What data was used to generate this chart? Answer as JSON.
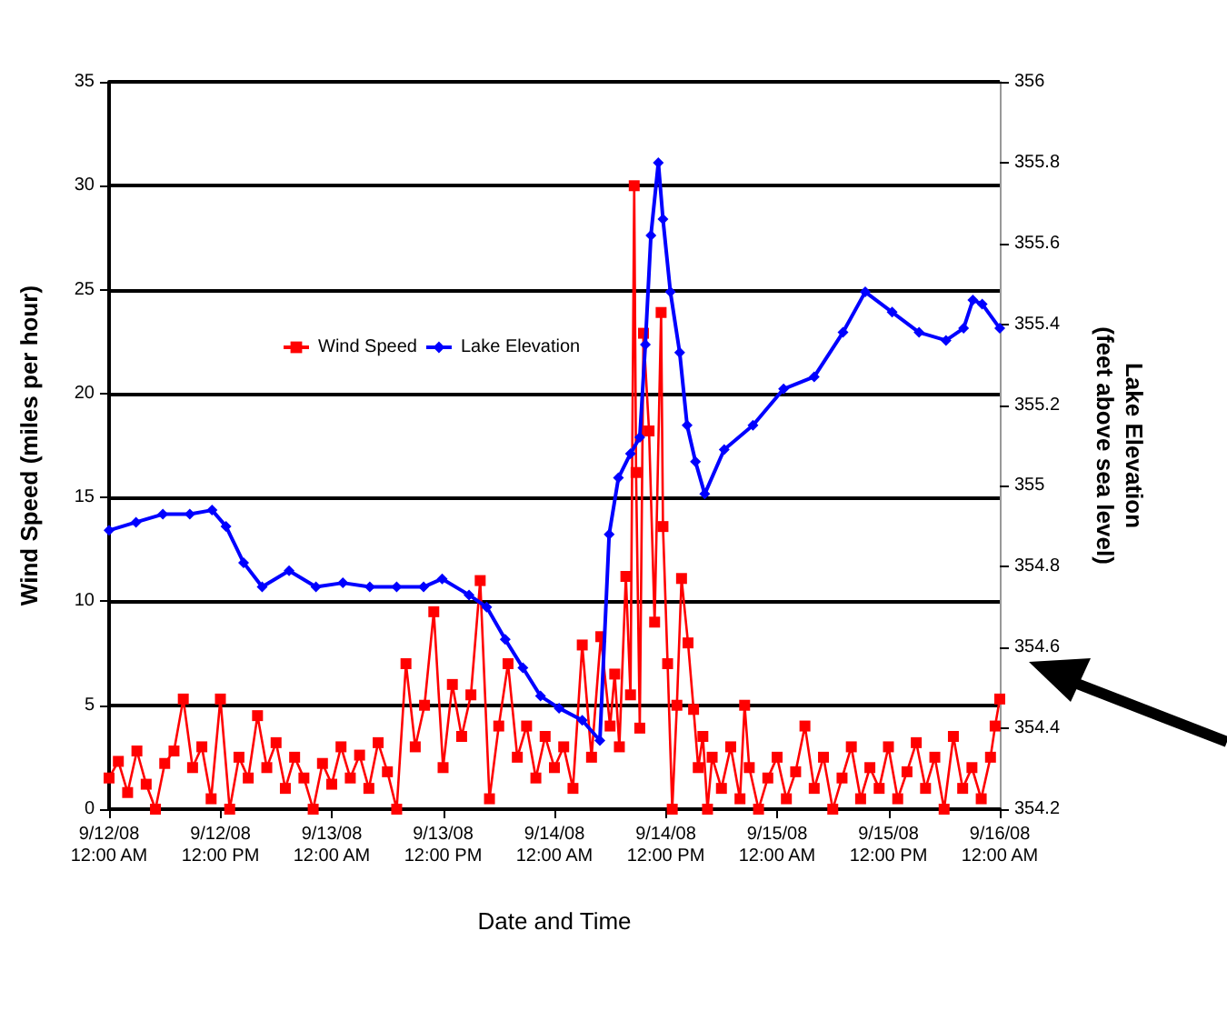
{
  "chart_data": {
    "type": "line",
    "xlabel": "Date and Time",
    "ylabel": "Wind Speed (miles per hour)",
    "y2label": "Lake Elevation\n(feet above sea level)",
    "xlim": [
      "--09-12T00:00",
      "--09-16T00:00"
    ],
    "xticks": [
      {
        "value": "--09-12T00:00",
        "label": "9/12/08 12:00 AM"
      },
      {
        "value": "--09-12T12:00",
        "label": "9/12/08 12:00 PM"
      },
      {
        "value": "--09-13T00:00",
        "label": "9/13/08 12:00 AM"
      },
      {
        "value": "--09-13T12:00",
        "label": "9/13/08 12:00 PM"
      },
      {
        "value": "--09-14T00:00",
        "label": "9/14/08 12:00 AM"
      },
      {
        "value": "--09-14T12:00",
        "label": "9/14/08 12:00 PM"
      },
      {
        "value": "--09-15T00:00",
        "label": "9/15/08 12:00 AM"
      },
      {
        "value": "--09-15T12:00",
        "label": "9/15/08 12:00 PM"
      },
      {
        "value": "--09-16T00:00",
        "label": "9/16/08 12:00 AM"
      }
    ],
    "ylim": [
      0,
      35
    ],
    "yticks": [
      0,
      5,
      10,
      15,
      20,
      25,
      30,
      35
    ],
    "y2lim": [
      354.2,
      356
    ],
    "y2ticks": [
      354.2,
      354.4,
      354.6,
      354.8,
      355,
      355.2,
      355.4,
      355.6,
      355.8,
      356
    ],
    "grid": "y",
    "legend": "top left",
    "series": [
      {
        "name": "Wind Speed",
        "color": "#ff0000",
        "marker": "square",
        "x": [
          "--09-12T00:00",
          "--09-12T01:00",
          "--09-12T02:00",
          "--09-12T03:00",
          "--09-12T04:00",
          "--09-12T05:00",
          "--09-12T06:00",
          "--09-12T07:00",
          "--09-12T08:00",
          "--09-12T09:00",
          "--09-12T10:00",
          "--09-12T11:00",
          "--09-12T12:00",
          "--09-12T13:00",
          "--09-12T14:00",
          "--09-12T15:00",
          "--09-12T16:00",
          "--09-12T17:00",
          "--09-12T18:00",
          "--09-12T19:00",
          "--09-12T20:00",
          "--09-12T21:00",
          "--09-12T22:00",
          "--09-12T23:00",
          "--09-13T00:00",
          "--09-13T01:00",
          "--09-13T02:00",
          "--09-13T03:00",
          "--09-13T04:00",
          "--09-13T05:00",
          "--09-13T06:00",
          "--09-13T07:00",
          "--09-13T08:00",
          "--09-13T09:00",
          "--09-13T10:00",
          "--09-13T11:00",
          "--09-13T12:00",
          "--09-13T13:00",
          "--09-13T14:00",
          "--09-13T15:00",
          "--09-13T16:00",
          "--09-13T17:00",
          "--09-13T18:00",
          "--09-13T19:00",
          "--09-13T20:00",
          "--09-13T21:00",
          "--09-13T22:00",
          "--09-13T23:00",
          "--09-14T00:00",
          "--09-14T01:00",
          "--09-14T02:00",
          "--09-14T03:00",
          "--09-14T04:00",
          "--09-14T05:00",
          "--09-14T06:00",
          "--09-14T06:30",
          "--09-14T07:00",
          "--09-14T07:42",
          "--09-14T08:12",
          "--09-14T08:36",
          "--09-14T08:48",
          "--09-14T09:12",
          "--09-14T09:36",
          "--09-14T10:12",
          "--09-14T10:48",
          "--09-14T11:30",
          "--09-14T11:42",
          "--09-14T12:12",
          "--09-14T12:42",
          "--09-14T13:12",
          "--09-14T13:42",
          "--09-14T14:24",
          "--09-14T15:00",
          "--09-14T15:30",
          "--09-14T16:00",
          "--09-14T16:30",
          "--09-14T17:00",
          "--09-14T18:00",
          "--09-14T19:00",
          "--09-14T20:00",
          "--09-14T20:30",
          "--09-14T21:00",
          "--09-14T22:00",
          "--09-14T23:00",
          "--09-15T00:00",
          "--09-15T01:00",
          "--09-15T02:00",
          "--09-15T03:00",
          "--09-15T04:00",
          "--09-15T05:00",
          "--09-15T06:00",
          "--09-15T07:00",
          "--09-15T08:00",
          "--09-15T09:00",
          "--09-15T10:00",
          "--09-15T11:00",
          "--09-15T12:00",
          "--09-15T13:00",
          "--09-15T14:00",
          "--09-15T15:00",
          "--09-15T16:00",
          "--09-15T17:00",
          "--09-15T18:00",
          "--09-15T19:00",
          "--09-15T20:00",
          "--09-15T21:00",
          "--09-15T22:00",
          "--09-15T23:00",
          "--09-15T23:30",
          "--09-16T00:00"
        ],
        "values": [
          1.5,
          2.3,
          0.8,
          2.8,
          1.2,
          0,
          2.2,
          2.8,
          5.3,
          2,
          3,
          0.5,
          5.3,
          0,
          2.5,
          1.5,
          4.5,
          2,
          3.2,
          1,
          2.5,
          1.5,
          0,
          2.2,
          1.2,
          3,
          1.5,
          2.6,
          1,
          3.2,
          1.8,
          0,
          7,
          3,
          5,
          9.5,
          2,
          6,
          3.5,
          5.5,
          11,
          0.5,
          4,
          7,
          2.5,
          4,
          1.5,
          3.5,
          2,
          3,
          1,
          7.9,
          2.5,
          8.3,
          4,
          6.5,
          3,
          11.2,
          5.5,
          30,
          16.2,
          3.9,
          22.9,
          18.2,
          9,
          23.9,
          13.6,
          7,
          0,
          5,
          11.1,
          8,
          4.8,
          2,
          3.5,
          0,
          2.5,
          1,
          3,
          0.5,
          5,
          2,
          0,
          1.5,
          2.5,
          0.5,
          1.8,
          4,
          1,
          2.5,
          0,
          1.5,
          3,
          0.5,
          2,
          1,
          3,
          0.5,
          1.8,
          3.2,
          1,
          2.5,
          0,
          3.5,
          1,
          2,
          0.5,
          2.5,
          4,
          5.3
        ]
      },
      {
        "name": "Lake Elevation",
        "color": "#0000ff",
        "marker": "diamond",
        "axis": "y2",
        "x": [
          "--09-12T00:00",
          "--09-12T02:54",
          "--09-12T05:48",
          "--09-12T08:42",
          "--09-12T11:06",
          "--09-12T12:36",
          "--09-12T14:30",
          "--09-12T16:30",
          "--09-12T19:24",
          "--09-12T22:18",
          "--09-13T01:12",
          "--09-13T04:06",
          "--09-13T07:00",
          "--09-13T09:54",
          "--09-13T11:54",
          "--09-13T14:48",
          "--09-13T16:42",
          "--09-13T18:42",
          "--09-13T20:36",
          "--09-13T22:30",
          "--09-14T00:30",
          "--09-14T03:00",
          "--09-14T04:54",
          "--09-14T05:54",
          "--09-14T06:54",
          "--09-14T08:12",
          "--09-14T09:12",
          "--09-14T09:48",
          "--09-14T10:24",
          "--09-14T11:12",
          "--09-14T11:42",
          "--09-14T12:30",
          "--09-14T13:30",
          "--09-14T14:18",
          "--09-14T15:12",
          "--09-14T16:12",
          "--09-14T18:18",
          "--09-14T21:24",
          "--09-15T00:42",
          "--09-15T04:00",
          "--09-15T07:06",
          "--09-15T09:30",
          "--09-15T12:24",
          "--09-15T15:18",
          "--09-15T18:12",
          "--09-15T20:06",
          "--09-15T21:06",
          "--09-15T22:06",
          "--09-16T00:00"
        ],
        "values": [
          354.89,
          354.91,
          354.93,
          354.93,
          354.94,
          354.9,
          354.81,
          354.75,
          354.79,
          354.75,
          354.76,
          354.75,
          354.75,
          354.75,
          354.77,
          354.73,
          354.7,
          354.62,
          354.55,
          354.48,
          354.45,
          354.42,
          354.37,
          354.88,
          355.02,
          355.08,
          355.12,
          355.35,
          355.62,
          355.8,
          355.66,
          355.48,
          355.33,
          355.15,
          355.06,
          354.98,
          355.09,
          355.15,
          355.24,
          355.27,
          355.38,
          355.48,
          355.43,
          355.38,
          355.36,
          355.39,
          355.46,
          355.45,
          355.39
        ]
      }
    ]
  }
}
